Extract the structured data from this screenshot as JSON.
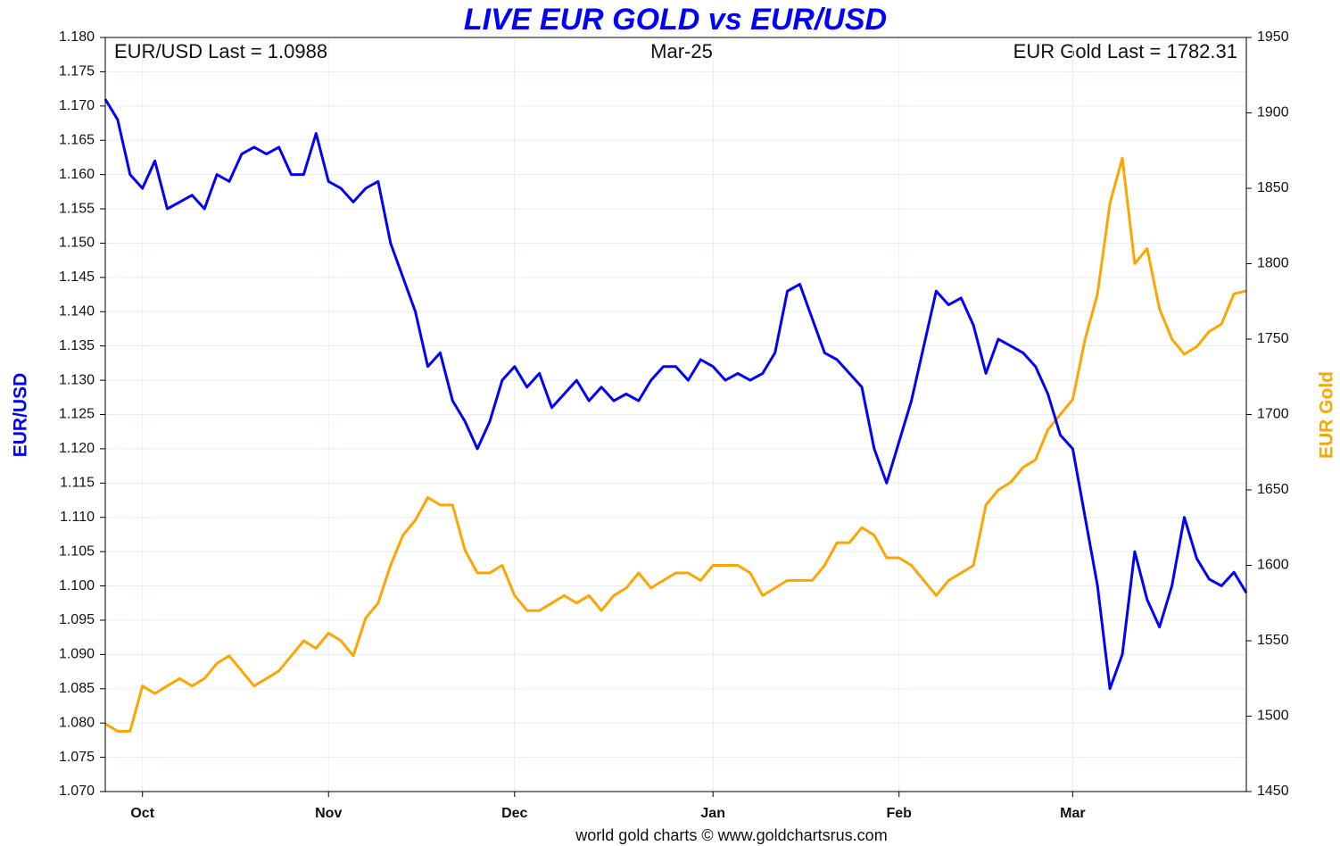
{
  "chart_data": {
    "type": "line",
    "title": "LIVE EUR GOLD vs EUR/USD",
    "ylabel": "EUR/USD",
    "y2label": "EUR Gold",
    "annotations": [
      "EUR/USD Last = 1.0988",
      "Mar-25",
      "EUR Gold Last = 1782.31"
    ],
    "footer": "world gold charts © www.goldchartsrus.com",
    "grid": true,
    "categories": [
      null,
      null,
      null,
      "Oct",
      null,
      null,
      null,
      null,
      null,
      null,
      null,
      null,
      null,
      null,
      null,
      null,
      null,
      null,
      "Nov",
      null,
      null,
      null,
      null,
      null,
      null,
      null,
      null,
      null,
      null,
      null,
      null,
      null,
      null,
      "Dec",
      null,
      null,
      null,
      null,
      null,
      null,
      null,
      null,
      null,
      null,
      null,
      null,
      null,
      null,
      null,
      "Jan",
      null,
      null,
      null,
      null,
      null,
      null,
      null,
      null,
      null,
      null,
      null,
      null,
      null,
      null,
      "Feb",
      null,
      null,
      null,
      null,
      null,
      null,
      null,
      null,
      null,
      null,
      null,
      null,
      null,
      "Mar",
      null,
      null,
      null,
      null,
      null,
      null,
      null,
      null,
      null,
      null,
      null,
      null,
      null,
      null
    ],
    "ylim": [
      1.07,
      1.18
    ],
    "yticks": [
      {
        "value": 1.07,
        "label": "1.070"
      },
      1.075,
      {
        "value": 1.08,
        "label": "1.080"
      },
      1.085,
      {
        "value": 1.09,
        "label": "1.090"
      },
      1.095,
      {
        "value": 1.1,
        "label": "1.100"
      },
      1.105,
      {
        "value": 1.11,
        "label": "1.110"
      },
      1.115,
      {
        "value": 1.12,
        "label": "1.120"
      },
      1.125,
      {
        "value": 1.13,
        "label": "1.130"
      },
      1.135,
      {
        "value": 1.14,
        "label": "1.140"
      },
      1.145,
      {
        "value": 1.15,
        "label": "1.150"
      },
      1.155,
      {
        "value": 1.16,
        "label": "1.160"
      },
      1.165,
      {
        "value": 1.17,
        "label": "1.170"
      },
      1.175,
      {
        "value": 1.18,
        "label": "1.180"
      }
    ],
    "y2lim": [
      1450,
      1950
    ],
    "y2ticks": [
      1450,
      1500,
      1550,
      1600,
      1650,
      1700,
      1750,
      1800,
      1850,
      1900,
      1950
    ],
    "series": [
      {
        "name": "EUR/USD",
        "color": "#0000ff",
        "values": [
          1.171,
          1.168,
          1.16,
          1.158,
          1.162,
          1.155,
          1.156,
          1.157,
          1.155,
          1.16,
          1.159,
          1.163,
          1.164,
          1.163,
          1.164,
          1.16,
          1.16,
          1.166,
          1.159,
          1.158,
          1.156,
          1.158,
          1.159,
          1.15,
          1.145,
          1.14,
          1.132,
          1.134,
          1.127,
          1.124,
          1.12,
          1.124,
          1.13,
          1.132,
          1.129,
          1.131,
          1.126,
          1.128,
          1.13,
          1.127,
          1.129,
          1.127,
          1.128,
          1.127,
          1.13,
          1.132,
          1.132,
          1.13,
          1.133,
          1.132,
          1.13,
          1.131,
          1.13,
          1.131,
          1.134,
          1.143,
          1.144,
          1.139,
          1.134,
          1.133,
          1.131,
          1.129,
          1.12,
          1.115,
          1.121,
          1.127,
          1.135,
          1.143,
          1.141,
          1.142,
          1.138,
          1.131,
          1.136,
          1.135,
          1.134,
          1.132,
          1.128,
          1.122,
          1.12,
          1.11,
          1.1,
          1.085,
          1.09,
          1.105,
          1.098,
          1.094,
          1.1,
          1.11,
          1.104,
          1.101,
          1.1,
          1.102,
          1.099
        ]
      },
      {
        "name": "EUR Gold",
        "color": "#ffa500",
        "axis": "y2",
        "values": [
          1495,
          1490,
          1490,
          1520,
          1515,
          1520,
          1525,
          1520,
          1525,
          1535,
          1540,
          1530,
          1520,
          1525,
          1530,
          1540,
          1550,
          1545,
          1555,
          1550,
          1540,
          1565,
          1575,
          1600,
          1620,
          1630,
          1645,
          1640,
          1640,
          1610,
          1595,
          1595,
          1600,
          1580,
          1570,
          1570,
          1575,
          1580,
          1575,
          1580,
          1570,
          1580,
          1585,
          1595,
          1585,
          1590,
          1595,
          1595,
          1590,
          1600,
          1600,
          1600,
          1595,
          1580,
          1585,
          1590,
          1590,
          1590,
          1600,
          1615,
          1615,
          1625,
          1620,
          1605,
          1605,
          1600,
          1590,
          1580,
          1590,
          1595,
          1600,
          1640,
          1650,
          1655,
          1665,
          1670,
          1690,
          1700,
          1710,
          1750,
          1780,
          1840,
          1870,
          1800,
          1810,
          1770,
          1750,
          1740,
          1745,
          1755,
          1760,
          1780,
          1782
        ]
      }
    ]
  }
}
